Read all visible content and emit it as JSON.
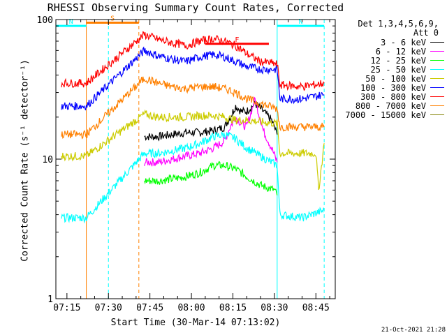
{
  "chart_data": {
    "type": "line",
    "title": "RHESSI Observing Summary Count Rates, Corrected",
    "xlabel": "Start Time (30-Mar-14 07:13:02)",
    "ylabel": "Corrected Count Rate (s⁻¹ detector⁻¹)",
    "yscale": "log",
    "ylim": [
      1,
      100
    ],
    "xlim": [
      "07:11",
      "08:52"
    ],
    "xticks": [
      "07:15",
      "07:30",
      "07:45",
      "08:00",
      "08:15",
      "08:30",
      "08:45"
    ],
    "yticks": [
      {
        "value": 1,
        "label": "1"
      },
      {
        "value": 10,
        "label": "10"
      },
      {
        "value": 100,
        "label": "100"
      }
    ],
    "legend_header": [
      "Det 1,3,4,5,6,9,",
      "Att 0"
    ],
    "legend_position": "right",
    "series": [
      {
        "name": "3 - 6 keV",
        "color": "#000000",
        "x": [
          "07:43",
          "07:48",
          "07:53",
          "07:58",
          "08:03",
          "08:08",
          "08:12",
          "08:14",
          "08:16",
          "08:18",
          "08:20",
          "08:23",
          "08:26",
          "08:29",
          "08:31"
        ],
        "y": [
          14.5,
          14.5,
          15,
          15.5,
          15.5,
          16,
          17,
          20,
          24,
          22,
          22,
          25,
          22,
          19,
          15
        ]
      },
      {
        "name": "6 - 12 keV",
        "color": "#ff00ff",
        "x": [
          "07:43",
          "07:48",
          "07:53",
          "07:58",
          "08:03",
          "08:08",
          "08:12",
          "08:14",
          "08:16",
          "08:18",
          "08:20",
          "08:23",
          "08:26",
          "08:29",
          "08:31"
        ],
        "y": [
          9.5,
          9.5,
          10,
          10.5,
          11,
          12,
          13.5,
          17,
          20,
          18,
          17,
          27,
          16,
          12,
          9.5
        ]
      },
      {
        "name": "12 - 25 keV",
        "color": "#00ff00",
        "x": [
          "07:43",
          "07:48",
          "07:53",
          "07:58",
          "08:03",
          "08:08",
          "08:12",
          "08:16",
          "08:20",
          "08:25",
          "08:30",
          "08:31"
        ],
        "y": [
          7,
          7,
          7.2,
          7.5,
          8,
          9,
          9,
          8.5,
          7.5,
          6.5,
          6,
          5.5
        ]
      },
      {
        "name": "25 - 50 keV",
        "color": "#00ffff",
        "x": [
          "07:13",
          "07:22",
          "07:43",
          "07:48",
          "07:53",
          "07:58",
          "08:03",
          "08:08",
          "08:12",
          "08:16",
          "08:20",
          "08:25",
          "08:31",
          "08:32",
          "08:40",
          "08:48"
        ],
        "y": [
          3.8,
          3.8,
          11,
          11,
          11.5,
          12,
          13,
          14.5,
          15,
          14,
          12,
          10.5,
          9,
          4.0,
          3.8,
          4.3
        ]
      },
      {
        "name": "50 - 100 keV",
        "color": "#cccc00",
        "x": [
          "07:13",
          "07:22",
          "07:43",
          "07:48",
          "07:53",
          "07:58",
          "08:03",
          "08:08",
          "08:12",
          "08:16",
          "08:20",
          "08:25",
          "08:31",
          "08:32",
          "08:40",
          "08:45",
          "08:46",
          "08:48"
        ],
        "y": [
          10.5,
          10.5,
          21,
          20,
          20,
          20,
          20.5,
          20.5,
          20,
          19,
          19,
          18.5,
          18,
          11,
          11,
          11,
          6,
          13
        ]
      },
      {
        "name": "100 - 300 keV",
        "color": "#0000ff",
        "x": [
          "07:13",
          "07:22",
          "07:43",
          "07:48",
          "07:53",
          "07:58",
          "08:03",
          "08:08",
          "08:12",
          "08:16",
          "08:20",
          "08:25",
          "08:31",
          "08:32",
          "08:40",
          "08:48"
        ],
        "y": [
          24,
          24,
          60,
          55,
          52,
          50,
          54,
          56,
          54,
          50,
          46,
          44,
          44,
          27,
          27,
          29
        ]
      },
      {
        "name": "300 - 800 keV",
        "color": "#ff0000",
        "x": [
          "07:13",
          "07:22",
          "07:43",
          "07:48",
          "07:53",
          "07:58",
          "08:03",
          "08:08",
          "08:12",
          "08:16",
          "08:20",
          "08:25",
          "08:31",
          "08:32",
          "08:40",
          "08:48"
        ],
        "y": [
          35,
          35,
          78,
          72,
          68,
          65,
          70,
          73,
          70,
          65,
          57,
          50,
          48,
          34,
          33,
          35
        ]
      },
      {
        "name": "800 - 7000 keV",
        "color": "#ff8000",
        "x": [
          "07:13",
          "07:22",
          "07:43",
          "07:48",
          "07:53",
          "07:58",
          "08:03",
          "08:08",
          "08:12",
          "08:16",
          "08:20",
          "08:25",
          "08:31",
          "08:32",
          "08:40",
          "08:48"
        ],
        "y": [
          15,
          15,
          38,
          35,
          33,
          32,
          33,
          33,
          32,
          30,
          27,
          25,
          23,
          17,
          17,
          17
        ]
      },
      {
        "name": "7000 - 15000 keV",
        "color": "#808000",
        "x": [],
        "y": []
      }
    ],
    "annotations": [
      {
        "label": "S",
        "color": "#ff8000",
        "x_start": "07:22",
        "x_end": "07:41",
        "y": 95
      },
      {
        "label": "N",
        "color": "#00ffff",
        "x_start": "07:11",
        "x_end": "07:22",
        "y": 90
      },
      {
        "label": "N",
        "color": "#00ffff",
        "x_start": "08:31",
        "x_end": "08:48",
        "y": 90
      },
      {
        "label": "F",
        "color": "#ff0000",
        "x_start": "08:05",
        "x_end": "08:28",
        "y": 67
      }
    ],
    "vertical_lines": [
      {
        "x": "07:11",
        "color": "#00ffff",
        "style": "solid"
      },
      {
        "x": "07:22",
        "color": "#ff8000",
        "style": "solid"
      },
      {
        "x": "07:30",
        "color": "#00ffff",
        "style": "dashed"
      },
      {
        "x": "07:41",
        "color": "#ff8000",
        "style": "dashed"
      },
      {
        "x": "08:31",
        "color": "#00ffff",
        "style": "solid"
      },
      {
        "x": "08:48",
        "color": "#00ffff",
        "style": "dashed"
      }
    ],
    "timestamp": "21-Oct-2021 21:28",
    "grid": false
  }
}
